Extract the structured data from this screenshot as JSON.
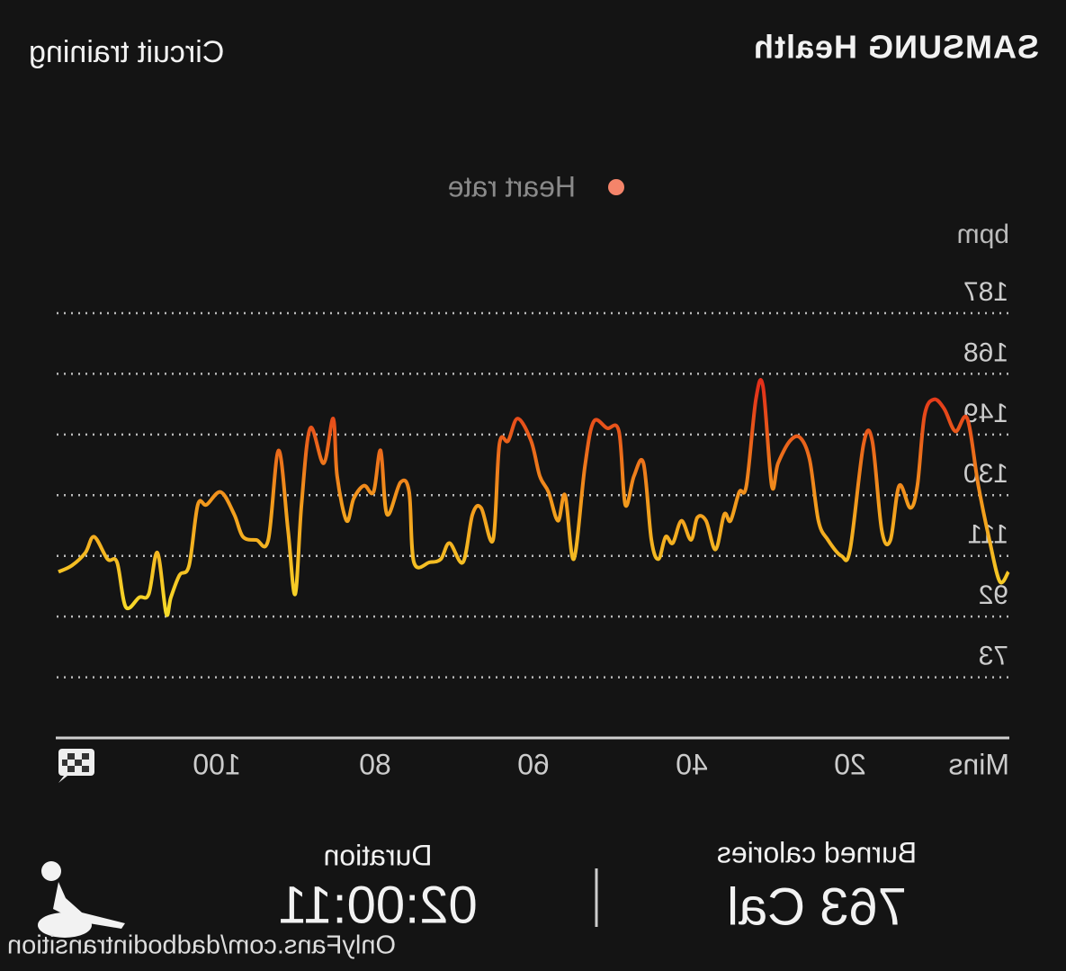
{
  "header": {
    "brand": "SAMSUNG Health",
    "activity": "Circuit training"
  },
  "chart_data": {
    "type": "line",
    "x_label": "Mins",
    "y_label": "bpm",
    "xlim": [
      0,
      120
    ],
    "xticks": [
      20,
      40,
      60,
      80,
      100
    ],
    "ylim": [
      54,
      187
    ],
    "yticks": [
      73,
      92,
      111,
      130,
      149,
      168,
      187
    ],
    "grid": true,
    "legend": "top",
    "gradient": [
      "#f7e02a",
      "#f29a1c",
      "#e3301a"
    ],
    "series": [
      {
        "name": "Heart rate",
        "color": "#f4846a",
        "x": [
          0,
          1.1,
          2.4,
          3.8,
          5.2,
          6.7,
          8.1,
          9.4,
          10.6,
          11.5,
          12.4,
          13.8,
          14.9,
          16,
          17.2,
          18.3,
          20,
          21.1,
          22.8,
          24,
          25.1,
          26.3,
          27.6,
          29.1,
          29.9,
          31,
          31.9,
          33.1,
          34,
          35.1,
          35.9,
          37,
          38.2,
          39.3,
          40.1,
          41.3,
          42.4,
          43.3,
          44.2,
          45.1,
          46.1,
          47.3,
          48.4,
          49.2,
          50.7,
          52.4,
          53.5,
          54.9,
          56,
          56.9,
          58.1,
          59.2,
          60.3,
          62,
          63.2,
          64.3,
          65.1,
          66.6,
          67.7,
          68.9,
          70.6,
          71.7,
          73.1,
          75.1,
          75.7,
          76.8,
          78.5,
          79.3,
          80.2,
          81.4,
          82.7,
          83.6,
          84.8,
          85.3,
          86.5,
          88.2,
          89.3,
          90.1,
          91,
          92.2,
          93.5,
          95,
          96.7,
          97.8,
          99.5,
          101.3,
          102.4,
          103.5,
          104.7,
          105.8,
          106.4,
          107.5,
          108.6,
          109.8,
          111.5,
          112.6,
          113.8,
          115.5,
          116.6,
          118.3,
          120
        ],
        "values": [
          106,
          103,
          116,
          133,
          154,
          150,
          157,
          160,
          155,
          133,
          126,
          133,
          116,
          119,
          147,
          146,
          113,
          111,
          116,
          122,
          141,
          148,
          147,
          140,
          133,
          164,
          160,
          133,
          131,
          122,
          124,
          113,
          122,
          123,
          116,
          122,
          115,
          117,
          110,
          116,
          140,
          136,
          127,
          150,
          151,
          153,
          139,
          110,
          130,
          122,
          131,
          136,
          147,
          154,
          147,
          146,
          116,
          126,
          124,
          109,
          115,
          110,
          109,
          109,
          131,
          134,
          124,
          144,
          131,
          133,
          129,
          122,
          136,
          154,
          140,
          151,
          127,
          99,
          119,
          144,
          116,
          116,
          117,
          124,
          131,
          127,
          127,
          108,
          105,
          98,
          93,
          112,
          99,
          98,
          95,
          109,
          110,
          117,
          112,
          108,
          106
        ]
      }
    ]
  },
  "summary": {
    "calories_label": "Burned calories",
    "calories": "763 Cal",
    "duration_label": "Duration",
    "duration": "02:00:11"
  },
  "watermark": "OnlyFans.com/dadbodintransition"
}
